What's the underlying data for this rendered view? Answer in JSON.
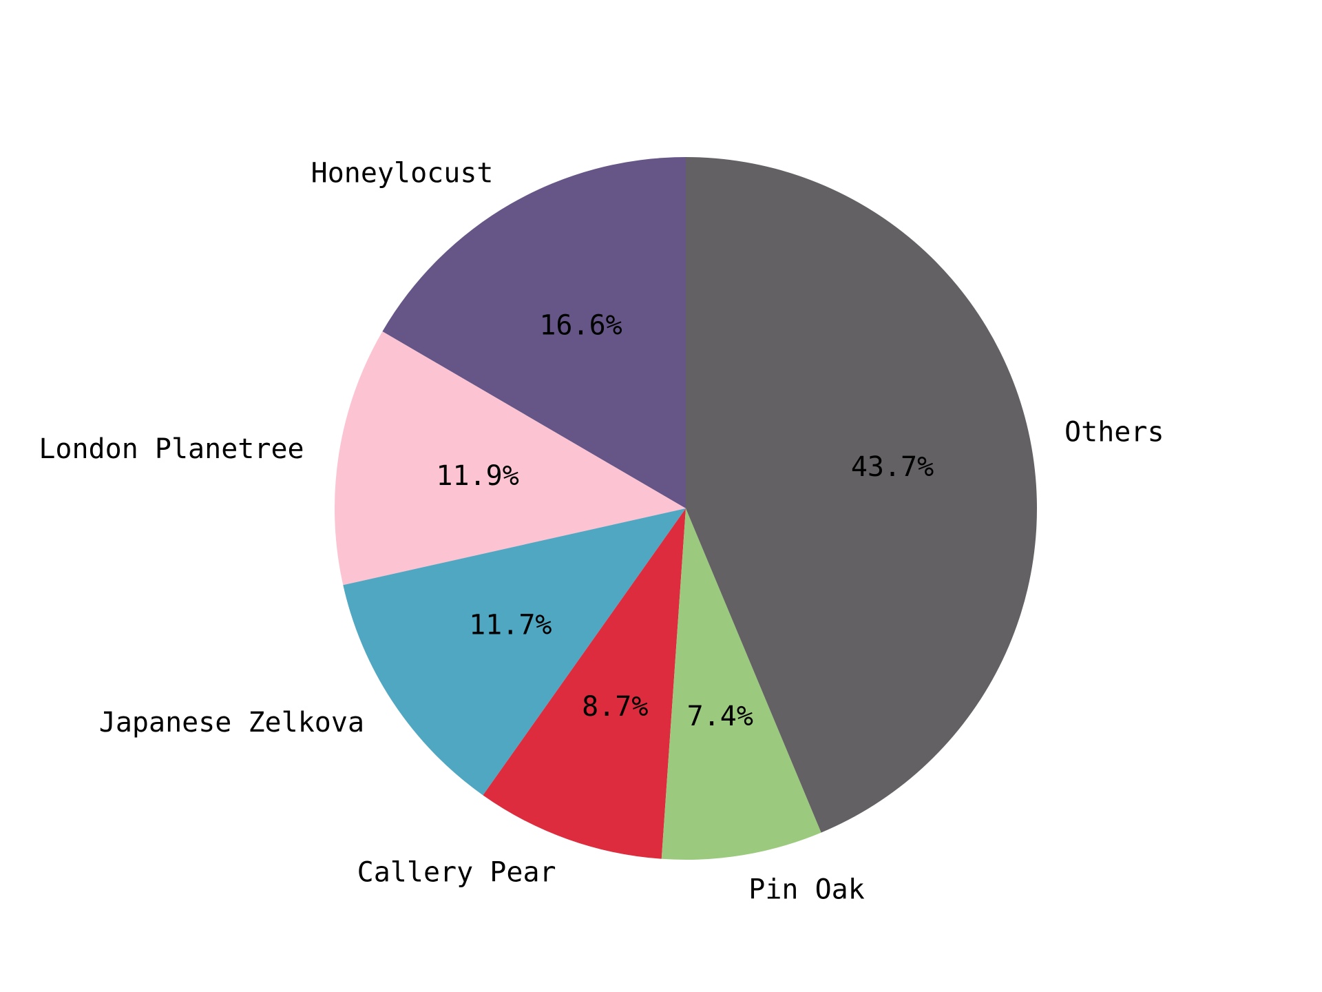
{
  "chart_data": {
    "type": "pie",
    "start_angle_deg": 90,
    "direction": "counterclockwise",
    "slices": [
      {
        "label": "Honeylocust",
        "value": 16.6,
        "pct_text": "16.6%",
        "color": "#665687"
      },
      {
        "label": "London Planetree",
        "value": 11.9,
        "pct_text": "11.9%",
        "color": "#fcc3d2"
      },
      {
        "label": "Japanese Zelkova",
        "value": 11.7,
        "pct_text": "11.7%",
        "color": "#50a7c2"
      },
      {
        "label": "Callery Pear",
        "value": 8.7,
        "pct_text": "8.7%",
        "color": "#dc2c3e"
      },
      {
        "label": "Pin Oak",
        "value": 7.4,
        "pct_text": "7.4%",
        "color": "#9bca7e"
      },
      {
        "label": "Others",
        "value": 43.7,
        "pct_text": "43.7%",
        "color": "#636164"
      }
    ]
  }
}
